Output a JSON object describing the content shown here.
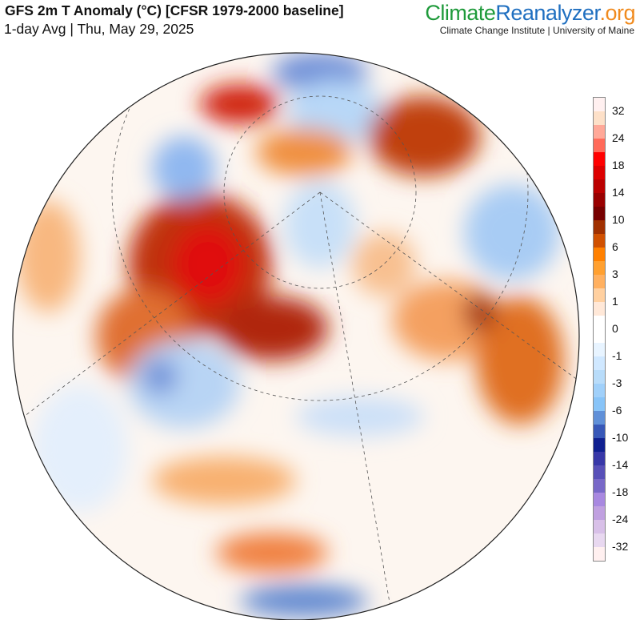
{
  "header": {
    "title": "GFS 2m T Anomaly (°C) [CFSR 1979-2000 baseline]",
    "subtitle": "1-day Avg | Thu, May 29, 2025"
  },
  "brand": {
    "part1": "Climate",
    "part2": "Reanalyzer",
    "part3": ".org",
    "institution": "Climate Change Institute | University of Maine"
  },
  "colorbar": {
    "labels": [
      "32",
      "24",
      "18",
      "14",
      "10",
      "6",
      "3",
      "1",
      "0",
      "-1",
      "-3",
      "-6",
      "-10",
      "-14",
      "-18",
      "-24",
      "-32"
    ],
    "colors": [
      "#fff0f0",
      "#fde0c8",
      "#ffa898",
      "#ff6a5a",
      "#ff0000",
      "#dd0000",
      "#bb0000",
      "#990000",
      "#770000",
      "#a03000",
      "#d05000",
      "#ff8000",
      "#ffa030",
      "#ffb060",
      "#ffd0a0",
      "#ffe8d8",
      "#ffffff",
      "#ffffff",
      "#e8f4ff",
      "#d0e8ff",
      "#b8dcfa",
      "#a0d0fa",
      "#88c4f8",
      "#6090d8",
      "#3858b8",
      "#102090",
      "#3838a8",
      "#5850b8",
      "#7868c8",
      "#a888e0",
      "#c0a0e0",
      "#d8c0e8",
      "#e8d8f0",
      "#fff0f0"
    ]
  }
}
